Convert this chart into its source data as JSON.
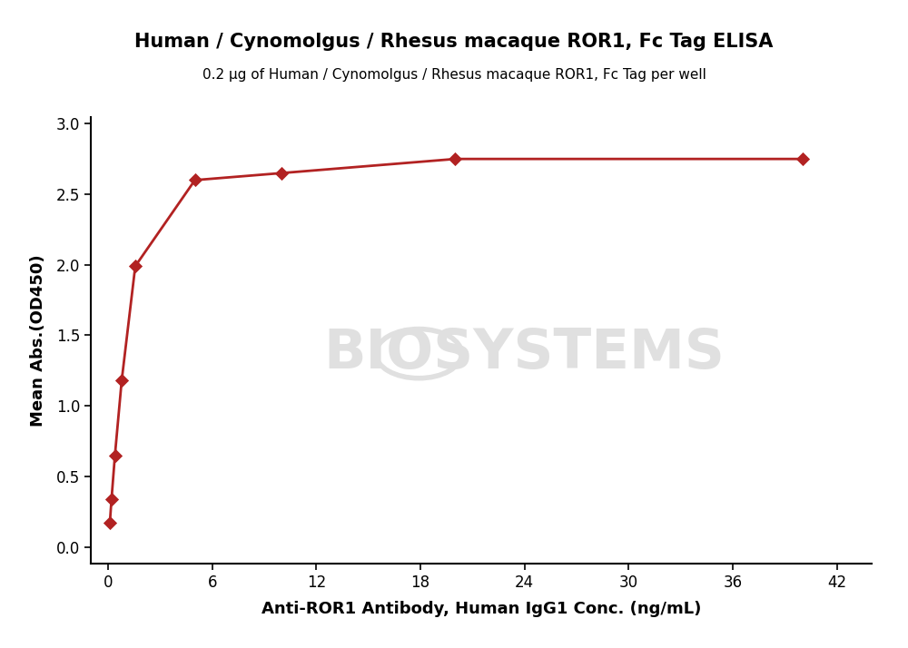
{
  "title": "Human / Cynomolgus / Rhesus macaque ROR1, Fc Tag ELISA",
  "subtitle": "0.2 μg of Human / Cynomolgus / Rhesus macaque ROR1, Fc Tag per well",
  "xlabel": "Anti-ROR1 Antibody, Human IgG1 Conc. (ng/mL)",
  "ylabel": "Mean Abs.(OD450)",
  "x_data": [
    0.098,
    0.195,
    0.391,
    0.781,
    1.563,
    5.0,
    10.0,
    20.0,
    40.0
  ],
  "y_data": [
    0.17,
    0.34,
    0.65,
    1.18,
    1.99,
    2.6,
    2.65,
    2.75,
    2.75
  ],
  "xlim": [
    -1,
    44
  ],
  "ylim": [
    -0.12,
    3.05
  ],
  "xticks": [
    0,
    6,
    12,
    18,
    24,
    30,
    36,
    42
  ],
  "yticks": [
    0.0,
    0.5,
    1.0,
    1.5,
    2.0,
    2.5,
    3.0
  ],
  "line_color": "#b22222",
  "marker_color": "#b22222",
  "title_fontsize": 15,
  "subtitle_fontsize": 11,
  "axis_label_fontsize": 13,
  "tick_fontsize": 12,
  "watermark_text": "BIOSYSTEMS",
  "watermark_color": "#e0e0e0",
  "background_color": "#ffffff",
  "fig_width": 10.0,
  "fig_height": 7.14
}
